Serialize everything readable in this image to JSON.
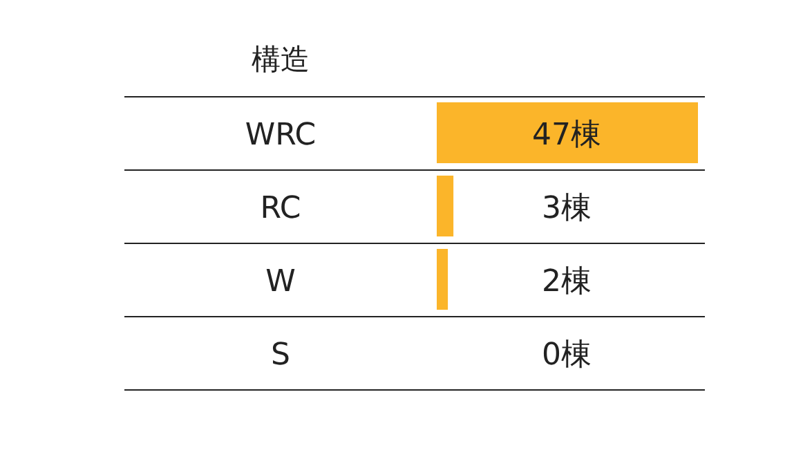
{
  "chart_data": {
    "type": "bar",
    "orientation": "horizontal",
    "ylabel": "構造",
    "categories": [
      "WRC",
      "RC",
      "W",
      "S"
    ],
    "values": [
      47,
      3,
      2,
      0
    ],
    "value_labels": [
      "47棟",
      "3棟",
      "2棟",
      "0棟"
    ],
    "color": "#fbb52a"
  }
}
